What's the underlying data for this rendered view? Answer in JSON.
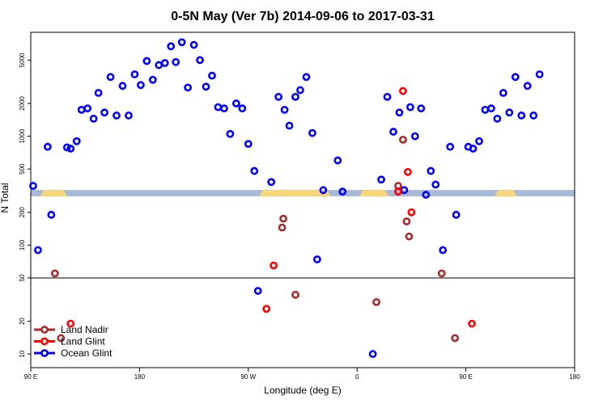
{
  "chart_data": {
    "type": "scatter",
    "title": "0-5N May (Ver 7b)   2014-09-06 to 2017-03-31",
    "xlabel": "Longitude (deg E)",
    "ylabel": "N Total",
    "x_tick_labels": [
      "90 E",
      "180",
      "90 W",
      "0",
      "90 E",
      "180"
    ],
    "x_axis": {
      "range": [
        90,
        540
      ],
      "ticks": [
        90,
        180,
        270,
        360,
        450,
        540
      ]
    },
    "y_axis": {
      "scale": "log",
      "range": [
        7.5,
        9000
      ],
      "upper_ticks": [
        500,
        1000,
        2000,
        5000
      ],
      "lower_ticks": [
        10,
        20,
        50,
        100,
        200
      ],
      "tick_labels": [
        "10",
        "20",
        "50",
        "100",
        "200",
        "500",
        "1000",
        "2000",
        "5000"
      ],
      "split_value": 50
    },
    "land_band": {
      "value": 300,
      "land_segments": [
        [
          98,
          120
        ],
        [
          279,
          338
        ],
        [
          362,
          386
        ],
        [
          474,
          492
        ]
      ],
      "ocean_color": "#a7bad8",
      "land_color": "#f7d77a"
    },
    "legend": {
      "position": "bottom-left",
      "entries": [
        {
          "label": "Land Nadir",
          "color": "#a52a2a"
        },
        {
          "label": "Land Glint",
          "color": "#ff0000"
        },
        {
          "label": "Ocean Glint",
          "color": "#0000ff"
        }
      ]
    },
    "series": [
      {
        "name": "Ocean Glint",
        "color": "#0000ff",
        "points": [
          [
            92,
            350
          ],
          [
            96,
            90
          ],
          [
            104,
            800
          ],
          [
            107,
            190
          ],
          [
            120,
            790
          ],
          [
            123,
            770
          ],
          [
            128,
            900
          ],
          [
            132,
            1750
          ],
          [
            137,
            1800
          ],
          [
            142,
            1450
          ],
          [
            146,
            2500
          ],
          [
            151,
            1650
          ],
          [
            156,
            3500
          ],
          [
            161,
            1550
          ],
          [
            166,
            2900
          ],
          [
            171,
            1550
          ],
          [
            176,
            3700
          ],
          [
            181,
            2950
          ],
          [
            186,
            4900
          ],
          [
            191,
            3300
          ],
          [
            196,
            4500
          ],
          [
            201,
            4700
          ],
          [
            206,
            6700
          ],
          [
            210,
            4800
          ],
          [
            215,
            7300
          ],
          [
            220,
            2800
          ],
          [
            225,
            6900
          ],
          [
            230,
            5000
          ],
          [
            235,
            2850
          ],
          [
            240,
            3600
          ],
          [
            245,
            1850
          ],
          [
            250,
            1800
          ],
          [
            255,
            1050
          ],
          [
            260,
            2000
          ],
          [
            265,
            1800
          ],
          [
            270,
            850
          ],
          [
            275,
            480
          ],
          [
            278,
            38
          ],
          [
            289,
            380
          ],
          [
            295,
            2300
          ],
          [
            300,
            1750
          ],
          [
            304,
            1250
          ],
          [
            309,
            2300
          ],
          [
            313,
            2650
          ],
          [
            318,
            3500
          ],
          [
            323,
            1070
          ],
          [
            327,
            74
          ],
          [
            332,
            320
          ],
          [
            344,
            600
          ],
          [
            348,
            310
          ],
          [
            373,
            10
          ],
          [
            380,
            400
          ],
          [
            385,
            2300
          ],
          [
            390,
            1100
          ],
          [
            395,
            1650
          ],
          [
            399,
            320
          ],
          [
            404,
            1850
          ],
          [
            408,
            1000
          ],
          [
            413,
            1800
          ],
          [
            417,
            290
          ],
          [
            421,
            480
          ],
          [
            425,
            360
          ],
          [
            431,
            90
          ],
          [
            437,
            800
          ],
          [
            442,
            190
          ],
          [
            452,
            800
          ],
          [
            456,
            770
          ],
          [
            461,
            900
          ],
          [
            466,
            1750
          ],
          [
            471,
            1800
          ],
          [
            476,
            1450
          ],
          [
            481,
            2500
          ],
          [
            486,
            1650
          ],
          [
            491,
            3500
          ],
          [
            496,
            1550
          ],
          [
            501,
            2900
          ],
          [
            506,
            1550
          ],
          [
            511,
            3700
          ]
        ]
      },
      {
        "name": "Land Nadir",
        "color": "#a52a2a",
        "points": [
          [
            110,
            55
          ],
          [
            115,
            14
          ],
          [
            298,
            145
          ],
          [
            299,
            175
          ],
          [
            309,
            35
          ],
          [
            376,
            30
          ],
          [
            394,
            350
          ],
          [
            398,
            930
          ],
          [
            401,
            165
          ],
          [
            403,
            120
          ],
          [
            430,
            55
          ],
          [
            441,
            14
          ]
        ]
      },
      {
        "name": "Land Glint",
        "color": "#ff0000",
        "points": [
          [
            123,
            19
          ],
          [
            285,
            26
          ],
          [
            291,
            65
          ],
          [
            394,
            310
          ],
          [
            398,
            2600
          ],
          [
            402,
            470
          ],
          [
            405,
            200
          ],
          [
            455,
            19
          ]
        ]
      }
    ]
  }
}
